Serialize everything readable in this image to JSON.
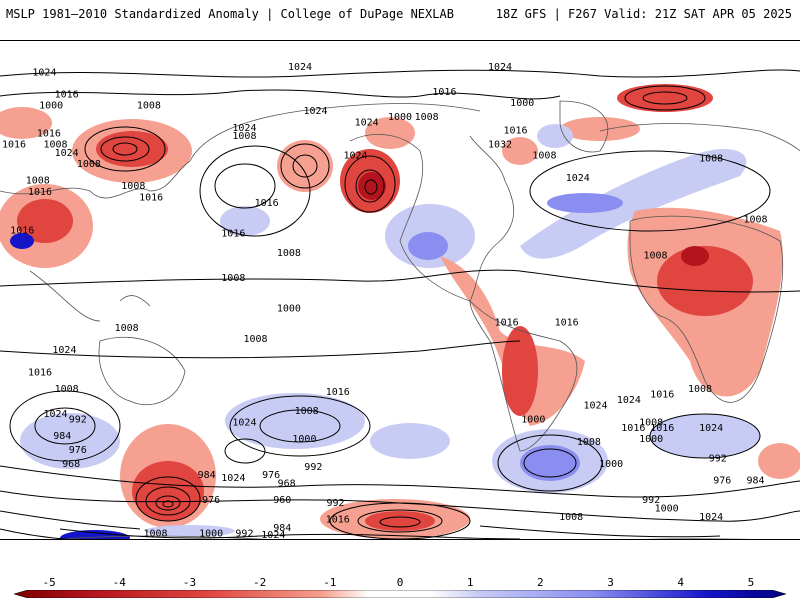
{
  "header": {
    "left_title": "MSLP 1981–2010 Standardized Anomaly | College of DuPage NEXLAB",
    "right_title": "18Z GFS | F267 Valid: 21Z SAT APR 05 2025"
  },
  "colors": {
    "neg_strong": "#b4141e",
    "neg_mid": "#e0453f",
    "neg_light": "#f5a090",
    "neutral": "#ffffff",
    "pos_light": "#c8ccf5",
    "pos_mid": "#8a8ef0",
    "pos_strong": "#1414c8",
    "isobar": "#000000",
    "land_outline": "#555555"
  },
  "colorbar": {
    "ticks": [
      "-5",
      "-4",
      "-3",
      "-2",
      "-1",
      "0",
      "1",
      "2",
      "3",
      "4",
      "5"
    ],
    "range": [
      -5.5,
      5.5
    ]
  },
  "isobar_labels": [
    {
      "text": "1024",
      "lon": -160,
      "lat": 78
    },
    {
      "text": "1024",
      "lon": -45,
      "lat": 80
    },
    {
      "text": "1024",
      "lon": 45,
      "lat": 80
    },
    {
      "text": "1016",
      "lon": 20,
      "lat": 71
    },
    {
      "text": "1016",
      "lon": -150,
      "lat": 70
    },
    {
      "text": "1000",
      "lon": 55,
      "lat": 67
    },
    {
      "text": "1008",
      "lon": 12,
      "lat": 62
    },
    {
      "text": "1016",
      "lon": 52,
      "lat": 57
    },
    {
      "text": "1008",
      "lon": 65,
      "lat": 48
    },
    {
      "text": "1024",
      "lon": -15,
      "lat": 60
    },
    {
      "text": "1024",
      "lon": -38,
      "lat": 64
    },
    {
      "text": "1032",
      "lon": 45,
      "lat": 52
    },
    {
      "text": "1024",
      "lon": 80,
      "lat": 40
    },
    {
      "text": "1008",
      "lon": -70,
      "lat": 55
    },
    {
      "text": "1008",
      "lon": -113,
      "lat": 66
    },
    {
      "text": "1000",
      "lon": 0,
      "lat": 62
    },
    {
      "text": "1024",
      "lon": -20,
      "lat": 48
    },
    {
      "text": "1016",
      "lon": -112,
      "lat": 33
    },
    {
      "text": "1008",
      "lon": -50,
      "lat": 13
    },
    {
      "text": "1016",
      "lon": -170,
      "lat": 21
    },
    {
      "text": "1016",
      "lon": -75,
      "lat": 20
    },
    {
      "text": "1024",
      "lon": -150,
      "lat": 49
    },
    {
      "text": "1000",
      "lon": -157,
      "lat": 66
    },
    {
      "text": "1008",
      "lon": -163,
      "lat": 39
    },
    {
      "text": "1008",
      "lon": -155,
      "lat": 52
    },
    {
      "text": "1016",
      "lon": -162,
      "lat": 35
    },
    {
      "text": "1008",
      "lon": -140,
      "lat": 45
    },
    {
      "text": "1016",
      "lon": -158,
      "lat": 56
    },
    {
      "text": "1008",
      "lon": -120,
      "lat": 37
    },
    {
      "text": "1016",
      "lon": -60,
      "lat": 31
    },
    {
      "text": "1024",
      "lon": -70,
      "lat": 58
    },
    {
      "text": "1016",
      "lon": -175,
      "lat": 52
    },
    {
      "text": "1008",
      "lon": 140,
      "lat": 47
    },
    {
      "text": "1008",
      "lon": 160,
      "lat": 25
    },
    {
      "text": "1008",
      "lon": -75,
      "lat": 4
    },
    {
      "text": "1008",
      "lon": 115,
      "lat": 12
    },
    {
      "text": "1000",
      "lon": -50,
      "lat": -7
    },
    {
      "text": "1008",
      "lon": -65,
      "lat": -18
    },
    {
      "text": "1016",
      "lon": 48,
      "lat": -12
    },
    {
      "text": "1016",
      "lon": 75,
      "lat": -12
    },
    {
      "text": "1008",
      "lon": -123,
      "lat": -14
    },
    {
      "text": "1024",
      "lon": -151,
      "lat": -22
    },
    {
      "text": "1016",
      "lon": -162,
      "lat": -30
    },
    {
      "text": "1008",
      "lon": -150,
      "lat": -36
    },
    {
      "text": "1024",
      "lon": -155,
      "lat": -45
    },
    {
      "text": "1000",
      "lon": 60,
      "lat": -47
    },
    {
      "text": "992",
      "lon": -145,
      "lat": -47
    },
    {
      "text": "984",
      "lon": -152,
      "lat": -53
    },
    {
      "text": "976",
      "lon": -145,
      "lat": -58
    },
    {
      "text": "968",
      "lon": -148,
      "lat": -63
    },
    {
      "text": "1016",
      "lon": 118,
      "lat": -38
    },
    {
      "text": "1024",
      "lon": 88,
      "lat": -42
    },
    {
      "text": "1016",
      "lon": 105,
      "lat": -50
    },
    {
      "text": "1008",
      "lon": 85,
      "lat": -55
    },
    {
      "text": "1000",
      "lon": 95,
      "lat": -63
    },
    {
      "text": "1024",
      "lon": -75,
      "lat": -68
    },
    {
      "text": "1016",
      "lon": -28,
      "lat": -37
    },
    {
      "text": "1000",
      "lon": -43,
      "lat": -54
    },
    {
      "text": "1008",
      "lon": -42,
      "lat": -44
    },
    {
      "text": "1024",
      "lon": -70,
      "lat": -48
    },
    {
      "text": "992",
      "lon": -39,
      "lat": -64
    },
    {
      "text": "976",
      "lon": -58,
      "lat": -67
    },
    {
      "text": "968",
      "lon": -51,
      "lat": -70
    },
    {
      "text": "960",
      "lon": -53,
      "lat": -76
    },
    {
      "text": "976",
      "lon": -85,
      "lat": -76
    },
    {
      "text": "984",
      "lon": -87,
      "lat": -67
    },
    {
      "text": "992",
      "lon": -29,
      "lat": -77
    },
    {
      "text": "1016",
      "lon": -28,
      "lat": -83
    },
    {
      "text": "1008",
      "lon": 135,
      "lat": -36
    },
    {
      "text": "1024",
      "lon": 103,
      "lat": -40
    },
    {
      "text": "1016",
      "lon": 118,
      "lat": -50
    },
    {
      "text": "1000",
      "lon": 113,
      "lat": -54
    },
    {
      "text": "1008",
      "lon": 113,
      "lat": -48
    },
    {
      "text": "1024",
      "lon": 140,
      "lat": -50
    },
    {
      "text": "992",
      "lon": 143,
      "lat": -61
    },
    {
      "text": "984",
      "lon": 160,
      "lat": -69
    },
    {
      "text": "976",
      "lon": 145,
      "lat": -69
    },
    {
      "text": "992",
      "lon": 113,
      "lat": -76
    },
    {
      "text": "1000",
      "lon": 120,
      "lat": -79
    },
    {
      "text": "1024",
      "lon": 140,
      "lat": -82
    },
    {
      "text": "1008",
      "lon": 77,
      "lat": -82
    },
    {
      "text": "1008",
      "lon": -110,
      "lat": -88
    },
    {
      "text": "1000",
      "lon": -85,
      "lat": -88
    },
    {
      "text": "992",
      "lon": -70,
      "lat": -88
    },
    {
      "text": "984",
      "lon": -53,
      "lat": -86
    },
    {
      "text": "1024",
      "lon": -57,
      "lat": -94
    }
  ]
}
